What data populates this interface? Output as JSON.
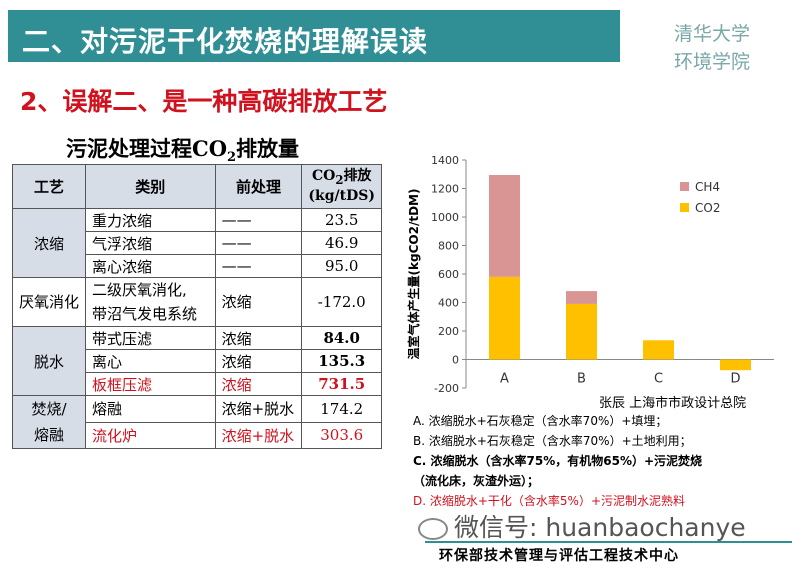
{
  "title": "二、对污泥干化焚烧的理解误读",
  "logo": {
    "line1": "清华大学",
    "line2": "环境学院"
  },
  "subtitle": "2、误解二、是一种高碳排放工艺",
  "table": {
    "title_main": "污泥处理过程CO",
    "title_sub": "2",
    "title_tail": "排放量",
    "headers": {
      "process": "工艺",
      "category": "类别",
      "pre": "前处理",
      "co2_a": "CO",
      "co2_sub": "2",
      "co2_b": "排放",
      "co2_unit": "(kg/tDS)"
    },
    "groups": {
      "thicken": "浓缩",
      "anaerobic": "厌氧消化",
      "dewater": "脱水",
      "burn_1": "焚烧/",
      "burn_2": "熔融"
    },
    "rows": [
      {
        "category": "重力浓缩",
        "pre": "——",
        "value": "23.5"
      },
      {
        "category": "气浮浓缩",
        "pre": "——",
        "value": "46.9"
      },
      {
        "category": "离心浓缩",
        "pre": "——",
        "value": "95.0"
      },
      {
        "category_1": "二级厌氧消化,",
        "category_2": "带沼气发电系统",
        "pre": "浓缩",
        "value": "-172.0"
      },
      {
        "category": "带式压滤",
        "pre": "浓缩",
        "value": "84.0"
      },
      {
        "category": "离心",
        "pre": "浓缩",
        "value": "135.3"
      },
      {
        "category": "板框压滤",
        "pre": "浓缩",
        "value": "731.5"
      },
      {
        "category": "熔融",
        "pre": "浓缩+脱水",
        "value": "174.2"
      },
      {
        "category": "流化炉",
        "pre": "浓缩+脱水",
        "value": "303.6"
      }
    ]
  },
  "chart_data": {
    "type": "bar",
    "stacked": true,
    "categories": [
      "A",
      "B",
      "C",
      "D"
    ],
    "series": [
      {
        "name": "CO2",
        "color": "#ffc000",
        "values": [
          580,
          390,
          135,
          -75
        ]
      },
      {
        "name": "CH4",
        "color": "#d99594",
        "values": [
          715,
          90,
          0,
          0
        ]
      }
    ],
    "ylabel": "温室气体产生量(kgCO2/tDM)",
    "ylim": [
      -200,
      1400
    ],
    "yticks": [
      "-200",
      "0",
      "200",
      "400",
      "600",
      "800",
      "1000",
      "1200",
      "1400"
    ],
    "legend": [
      "CH4",
      "CO2"
    ],
    "legend_position": "right"
  },
  "author": "张辰 上海市市政设计总院",
  "legend_items": [
    "A. 浓缩脱水+石灰稳定（含水率70%）+填埋；",
    "B. 浓缩脱水+石灰稳定（含水率70%）+土地利用；",
    "C. 浓缩脱水（含水率75%，有机物65%）+污泥焚烧",
    "（流化床，灰渣外运）；",
    "D. 浓缩脱水+干化（含水率5%）+污泥制水泥熟料"
  ],
  "wechat": "微信号: huanbaochanye",
  "footer": "环保部技术管理与评估工程技术中心"
}
